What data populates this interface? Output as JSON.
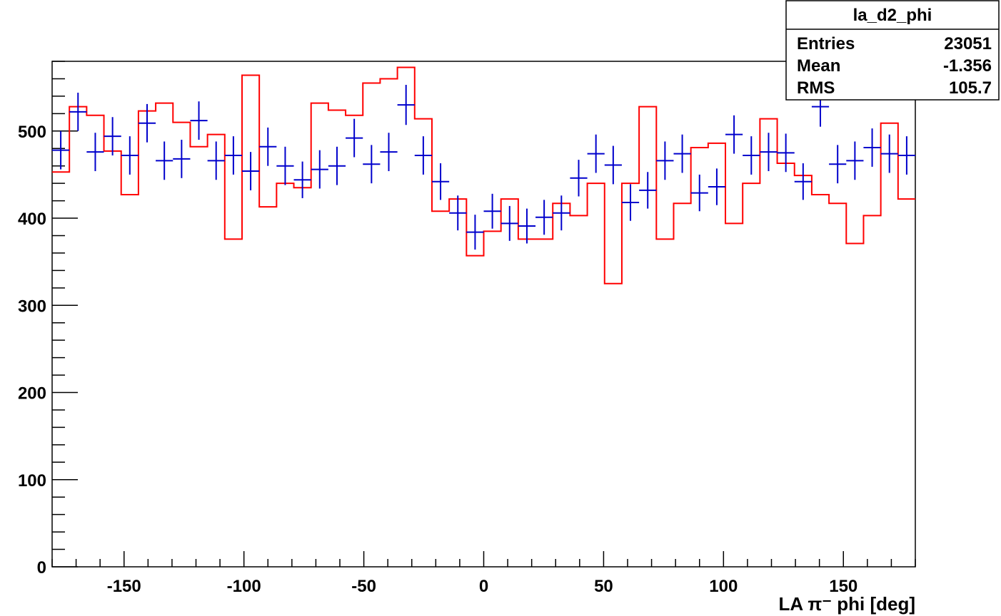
{
  "stats_box": {
    "title": "la_d2_phi",
    "rows": [
      {
        "label": "Entries",
        "value": "23051"
      },
      {
        "label": "Mean",
        "value": "-1.356"
      },
      {
        "label": "RMS",
        "value": "105.7"
      }
    ]
  },
  "chart_data": {
    "type": "line",
    "title": "",
    "xlabel": "LA π⁻ phi [deg]",
    "ylabel": "",
    "xlim": [
      -180,
      180
    ],
    "ylim": [
      0,
      580
    ],
    "grid": false,
    "x_ticks": [
      -150,
      -100,
      -50,
      0,
      50,
      100,
      150
    ],
    "y_ticks": [
      0,
      100,
      200,
      300,
      400,
      500
    ],
    "colors": {
      "line_series": "#ff0000",
      "points_series": "#0000cc"
    },
    "bin_edges": [
      -180,
      -172.8,
      -165.6,
      -158.4,
      -151.2,
      -144,
      -136.8,
      -129.6,
      -122.4,
      -115.2,
      -108,
      -100.8,
      -93.6,
      -86.4,
      -79.2,
      -72,
      -64.8,
      -57.6,
      -50.4,
      -43.2,
      -36,
      -28.8,
      -21.6,
      -14.4,
      -7.2,
      0,
      7.2,
      14.4,
      21.6,
      28.8,
      36,
      43.2,
      50.4,
      57.6,
      64.8,
      72,
      79.2,
      86.4,
      93.6,
      100.8,
      108,
      115.2,
      122.4,
      129.6,
      136.8,
      144,
      151.2,
      158.4,
      165.6,
      172.8,
      180
    ],
    "series": [
      {
        "style": "histogram",
        "values": [
          453,
          528,
          518,
          477,
          427,
          523,
          532,
          510,
          482,
          496,
          376,
          564,
          413,
          440,
          435,
          532,
          524,
          518,
          555,
          560,
          573,
          514,
          408,
          422,
          357,
          385,
          422,
          376,
          376,
          417,
          403,
          440,
          325,
          440,
          528,
          376,
          417,
          481,
          486,
          394,
          440,
          514,
          463,
          449,
          427,
          417,
          371,
          403,
          509,
          422
        ]
      },
      {
        "style": "points",
        "x": [
          -176.4,
          -169.2,
          -162,
          -154.8,
          -147.6,
          -140.4,
          -133.2,
          -126,
          -118.8,
          -111.6,
          -104.4,
          -97.2,
          -90,
          -82.8,
          -75.6,
          -68.4,
          -61.2,
          -54,
          -46.8,
          -39.6,
          -32.4,
          -25.2,
          -18,
          -10.8,
          -3.6,
          3.6,
          10.8,
          18,
          25.2,
          32.4,
          39.6,
          46.8,
          54,
          61.2,
          68.4,
          75.6,
          82.8,
          90,
          97.2,
          104.4,
          111.6,
          118.8,
          126,
          133.2,
          140.4,
          147.6,
          154.8,
          162,
          169.2,
          176.4
        ],
        "y": [
          478,
          522,
          476,
          494,
          472,
          509,
          466,
          468,
          512,
          466,
          472,
          454,
          482,
          460,
          444,
          456,
          460,
          492,
          462,
          476,
          530,
          472,
          442,
          406,
          384,
          408,
          394,
          391,
          401,
          406,
          446,
          474,
          461,
          418,
          432,
          466,
          474,
          429,
          436,
          496,
          472,
          476,
          475,
          442,
          528,
          462,
          466,
          481,
          474,
          472
        ],
        "errors": [
          22,
          22,
          22,
          22,
          22,
          22,
          22,
          22,
          22,
          22,
          22,
          22,
          22,
          22,
          21,
          22,
          22,
          22,
          22,
          22,
          23,
          22,
          21,
          20,
          20,
          20,
          20,
          20,
          20,
          20,
          21,
          22,
          22,
          21,
          21,
          22,
          22,
          21,
          21,
          22,
          22,
          22,
          22,
          21,
          23,
          22,
          22,
          22,
          22,
          22
        ]
      }
    ]
  }
}
